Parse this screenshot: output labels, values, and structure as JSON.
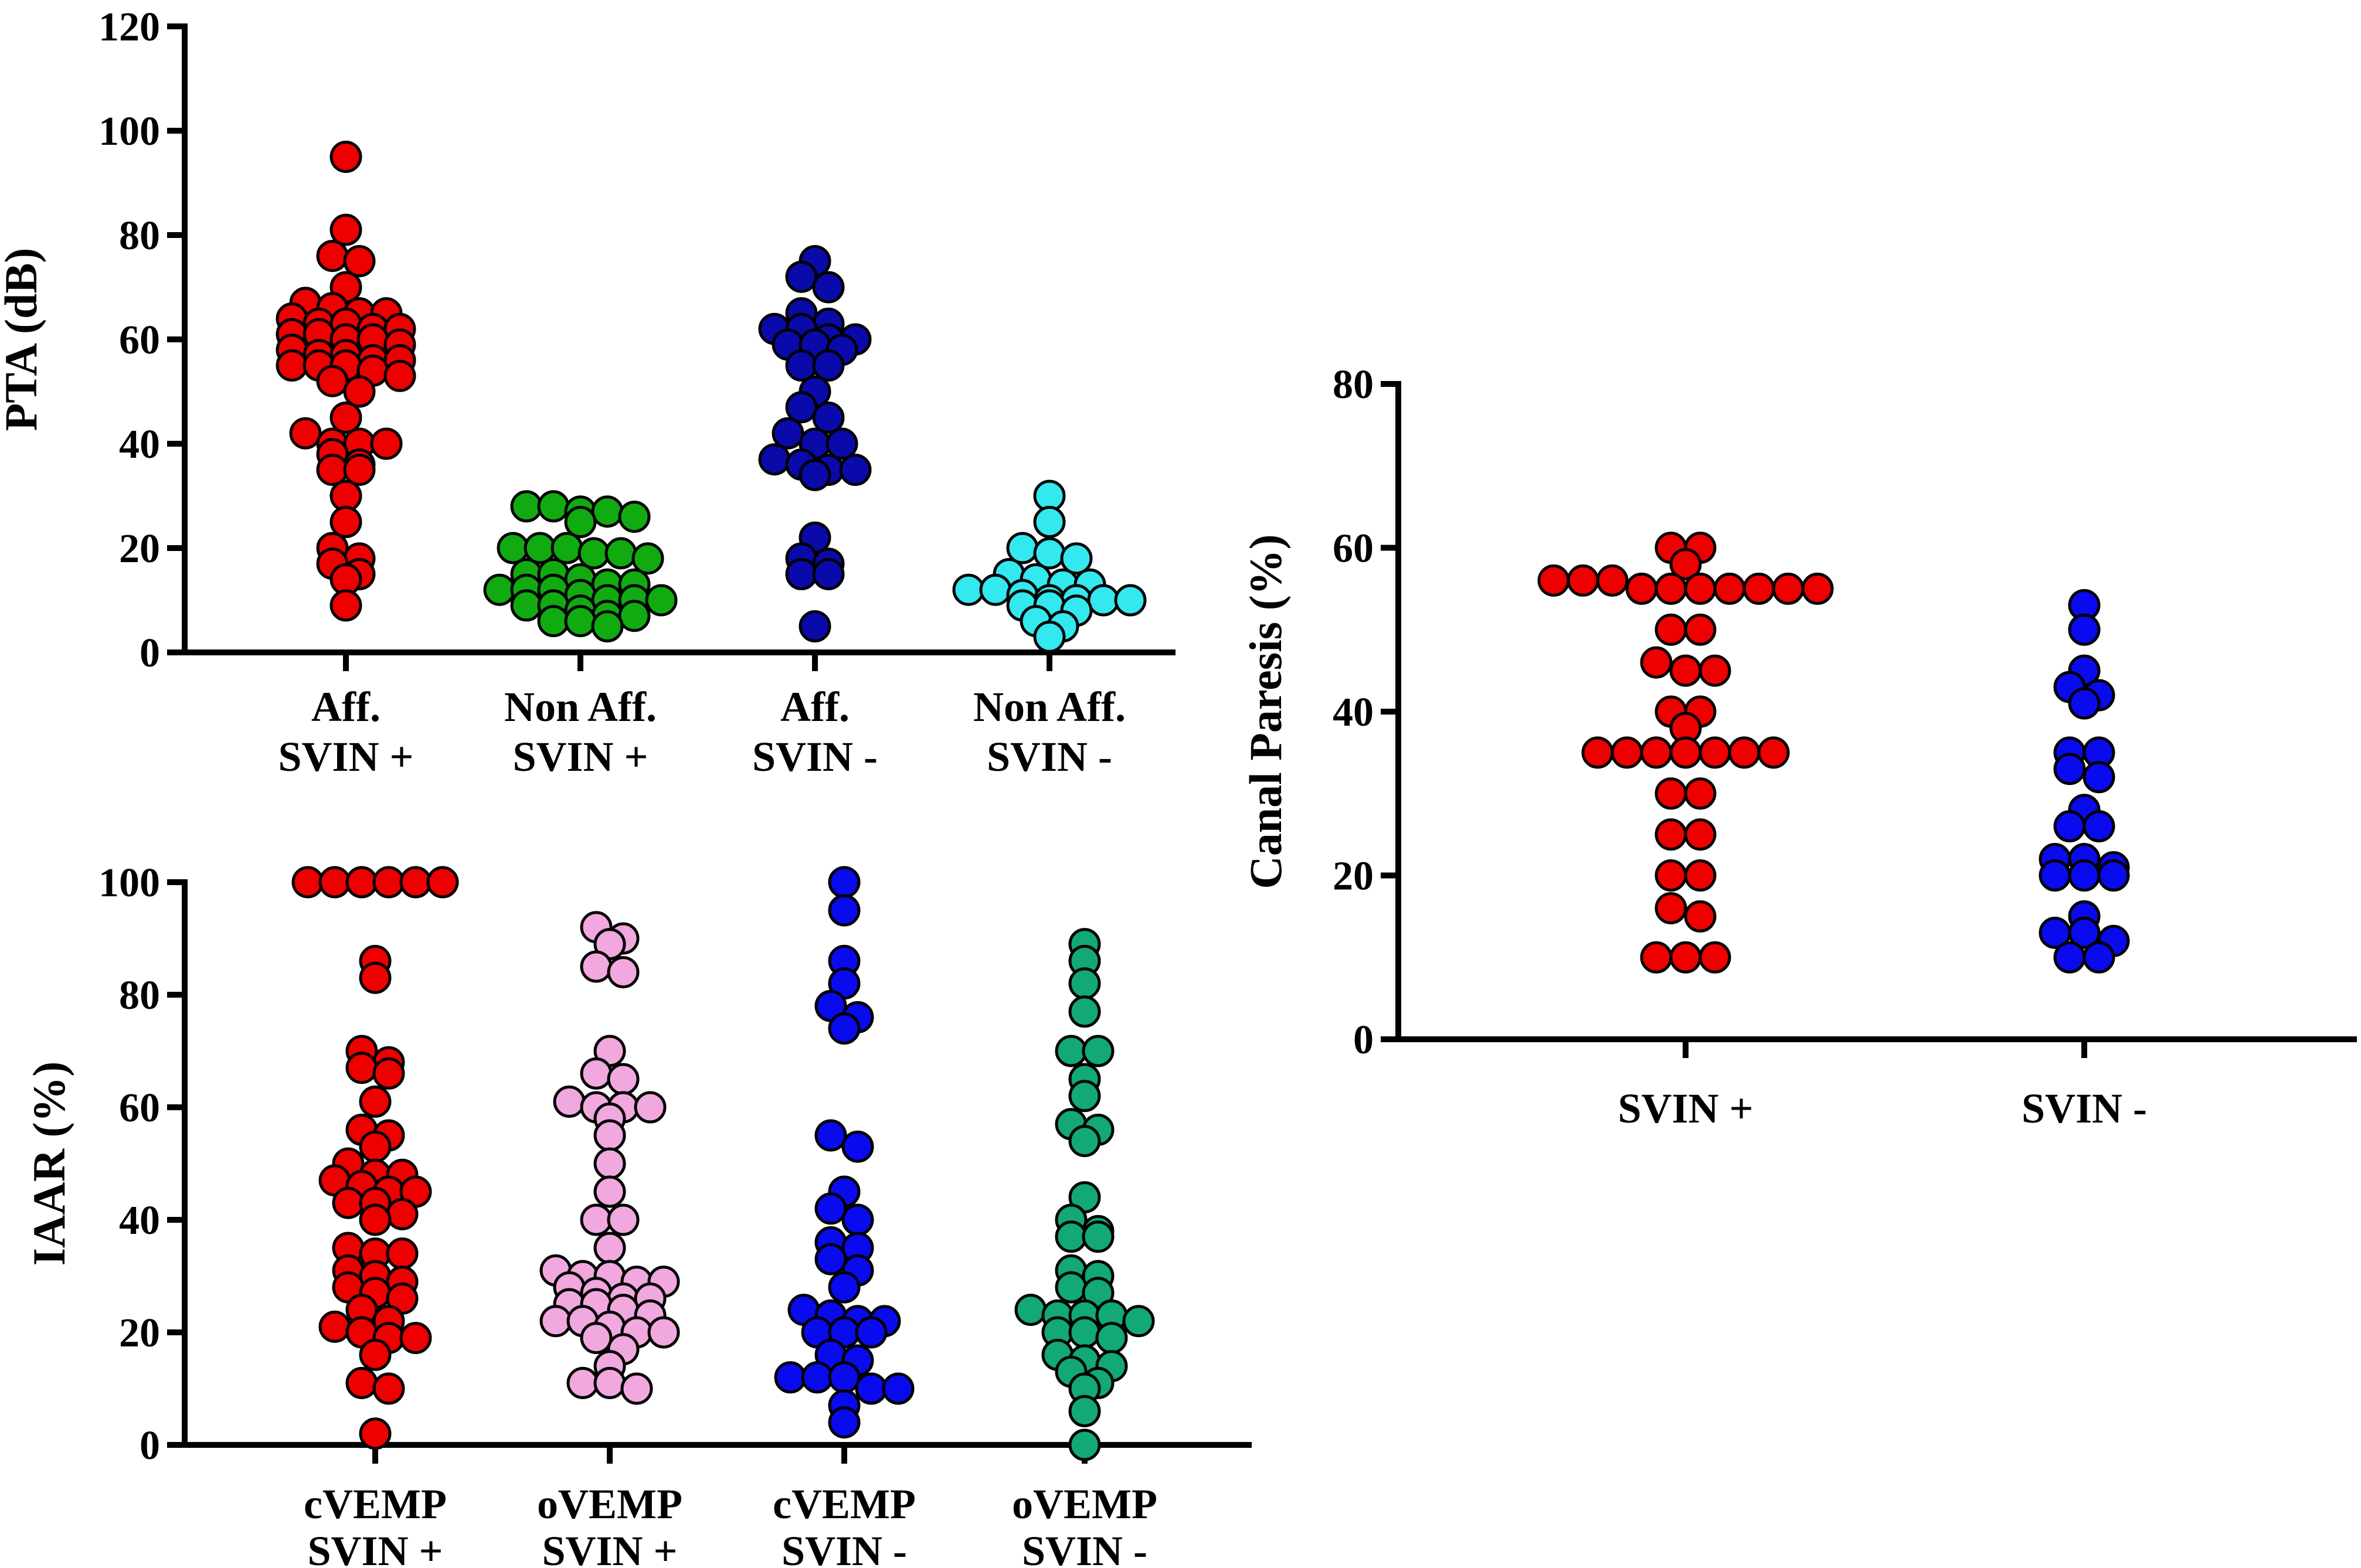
{
  "chart_data": [
    {
      "type": "scatter",
      "subtype": "column-scatter",
      "ylabel": "PTA (dB)",
      "ylim": [
        0,
        120
      ],
      "yticks": [
        0,
        20,
        40,
        60,
        80,
        100,
        120
      ],
      "categories": [
        {
          "line1": "Aff.",
          "line2": "SVIN +",
          "color": "#ee0000",
          "values": [
            95,
            81,
            76,
            75,
            70,
            67,
            66,
            65,
            65,
            64,
            63,
            63,
            62,
            62,
            61,
            61,
            60,
            60,
            59,
            58,
            57,
            57,
            56,
            56,
            55,
            55,
            55,
            54,
            53,
            52,
            50,
            45,
            42,
            40,
            40,
            40,
            38,
            36,
            35,
            35,
            30,
            25,
            20,
            18,
            17,
            15,
            14,
            9
          ]
        },
        {
          "line1": "Non Aff.",
          "line2": "SVIN +",
          "color": "#11aa11",
          "values": [
            28,
            28,
            27,
            27,
            26,
            25,
            20,
            20,
            20,
            19,
            19,
            18,
            15,
            15,
            14,
            13,
            13,
            12,
            12,
            12,
            11,
            10,
            10,
            10,
            9,
            9,
            8,
            7,
            7,
            6,
            6,
            5
          ]
        },
        {
          "line1": "Aff.",
          "line2": "SVIN -",
          "color": "#0a0aaa",
          "values": [
            75,
            72,
            70,
            65,
            63,
            62,
            62,
            60,
            60,
            59,
            59,
            58,
            55,
            55,
            50,
            47,
            45,
            42,
            40,
            40,
            37,
            36,
            35,
            35,
            34,
            22,
            18,
            17,
            15,
            15,
            5
          ]
        },
        {
          "line1": "Non Aff.",
          "line2": "SVIN -",
          "color": "#33e8ee",
          "values": [
            30,
            25,
            20,
            19,
            18,
            15,
            14,
            13,
            13,
            12,
            12,
            11,
            10,
            10,
            10,
            10,
            9,
            9,
            8,
            6,
            5,
            3
          ]
        }
      ]
    },
    {
      "type": "scatter",
      "subtype": "column-scatter",
      "ylabel": "IAAR (%)",
      "ylim": [
        0,
        100
      ],
      "yticks": [
        0,
        20,
        40,
        60,
        80,
        100
      ],
      "categories": [
        {
          "line1": "cVEMP",
          "line2": "SVIN +",
          "color": "#ee0000",
          "values": [
            100,
            100,
            100,
            100,
            100,
            100,
            86,
            83,
            70,
            68,
            67,
            66,
            61,
            56,
            55,
            53,
            50,
            48,
            48,
            47,
            46,
            45,
            45,
            43,
            43,
            41,
            40,
            35,
            34,
            34,
            31,
            30,
            29,
            28,
            27,
            26,
            24,
            22,
            21,
            20,
            19,
            19,
            16,
            11,
            10,
            2
          ]
        },
        {
          "line1": "oVEMP",
          "line2": "SVIN +",
          "color": "#f0a8de",
          "values": [
            92,
            90,
            89,
            85,
            84,
            70,
            66,
            65,
            61,
            60,
            60,
            60,
            58,
            55,
            50,
            45,
            40,
            40,
            35,
            31,
            30,
            30,
            29,
            29,
            28,
            27,
            26,
            26,
            25,
            25,
            24,
            23,
            22,
            22,
            21,
            20,
            20,
            19,
            17,
            14,
            11,
            11,
            10
          ]
        },
        {
          "line1": "cVEMP",
          "line2": "SVIN -",
          "color": "#0a0aee",
          "values": [
            100,
            95,
            86,
            82,
            78,
            76,
            74,
            55,
            53,
            45,
            42,
            40,
            36,
            35,
            33,
            31,
            28,
            24,
            23,
            22,
            22,
            20,
            20,
            20,
            16,
            15,
            12,
            12,
            12,
            10,
            10,
            7,
            4
          ]
        },
        {
          "line1": "oVEMP",
          "line2": "SVIN -",
          "color": "#12a878",
          "values": [
            89,
            86,
            82,
            77,
            70,
            70,
            65,
            62,
            57,
            56,
            54,
            44,
            40,
            38,
            37,
            37,
            31,
            30,
            28,
            27,
            24,
            23,
            23,
            23,
            22,
            20,
            20,
            19,
            16,
            15,
            14,
            13,
            11,
            10,
            6,
            0
          ]
        }
      ]
    },
    {
      "type": "scatter",
      "subtype": "column-scatter",
      "ylabel": "Canal Paresis (%)",
      "ylim": [
        0,
        80
      ],
      "yticks": [
        0,
        20,
        40,
        60,
        80
      ],
      "categories": [
        {
          "line1": "SVIN +",
          "line2": "",
          "color": "#ee0000",
          "values": [
            60,
            60,
            58,
            56,
            56,
            56,
            55,
            55,
            55,
            55,
            55,
            55,
            55,
            50,
            50,
            46,
            45,
            45,
            40,
            40,
            38,
            35,
            35,
            35,
            35,
            35,
            35,
            35,
            30,
            30,
            25,
            25,
            20,
            20,
            16,
            15,
            10,
            10,
            10
          ]
        },
        {
          "line1": "SVIN -",
          "line2": "",
          "color": "#0a0aee",
          "values": [
            53,
            50,
            45,
            43,
            42,
            41,
            35,
            35,
            33,
            32,
            28,
            26,
            26,
            22,
            22,
            21,
            20,
            20,
            20,
            15,
            13,
            13,
            12,
            10,
            10
          ]
        }
      ]
    }
  ]
}
